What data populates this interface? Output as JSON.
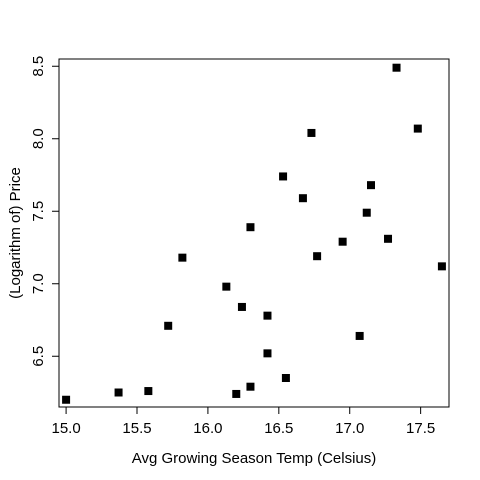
{
  "chart_data": {
    "type": "scatter",
    "title": "",
    "xlabel": "Avg Growing Season Temp (Celsius)",
    "ylabel": "(Logarithm of) Price",
    "xlim": [
      14.95,
      17.7
    ],
    "ylim": [
      6.15,
      8.55
    ],
    "xticks": [
      15.0,
      15.5,
      16.0,
      16.5,
      17.0,
      17.5
    ],
    "xtick_labels": [
      "15.0",
      "15.5",
      "16.0",
      "16.5",
      "17.0",
      "17.5"
    ],
    "yticks": [
      6.5,
      7.0,
      7.5,
      8.0,
      8.5
    ],
    "ytick_labels": [
      "6.5",
      "7.0",
      "7.5",
      "8.0",
      "8.5"
    ],
    "grid": false,
    "marker": "filled-square",
    "marker_color": "#000000",
    "points": [
      {
        "x": 15.0,
        "y": 6.2
      },
      {
        "x": 15.37,
        "y": 6.25
      },
      {
        "x": 15.58,
        "y": 6.26
      },
      {
        "x": 15.72,
        "y": 6.71
      },
      {
        "x": 15.82,
        "y": 7.18
      },
      {
        "x": 16.13,
        "y": 6.98
      },
      {
        "x": 16.2,
        "y": 6.24
      },
      {
        "x": 16.24,
        "y": 6.84
      },
      {
        "x": 16.3,
        "y": 6.29
      },
      {
        "x": 16.3,
        "y": 7.39
      },
      {
        "x": 16.42,
        "y": 6.52
      },
      {
        "x": 16.42,
        "y": 6.78
      },
      {
        "x": 16.53,
        "y": 7.74
      },
      {
        "x": 16.55,
        "y": 6.35
      },
      {
        "x": 16.67,
        "y": 7.59
      },
      {
        "x": 16.73,
        "y": 8.04
      },
      {
        "x": 16.77,
        "y": 7.19
      },
      {
        "x": 16.95,
        "y": 7.29
      },
      {
        "x": 17.07,
        "y": 6.64
      },
      {
        "x": 17.12,
        "y": 7.49
      },
      {
        "x": 17.15,
        "y": 7.68
      },
      {
        "x": 17.27,
        "y": 7.31
      },
      {
        "x": 17.33,
        "y": 8.49
      },
      {
        "x": 17.48,
        "y": 8.07
      },
      {
        "x": 17.65,
        "y": 7.12
      }
    ]
  }
}
